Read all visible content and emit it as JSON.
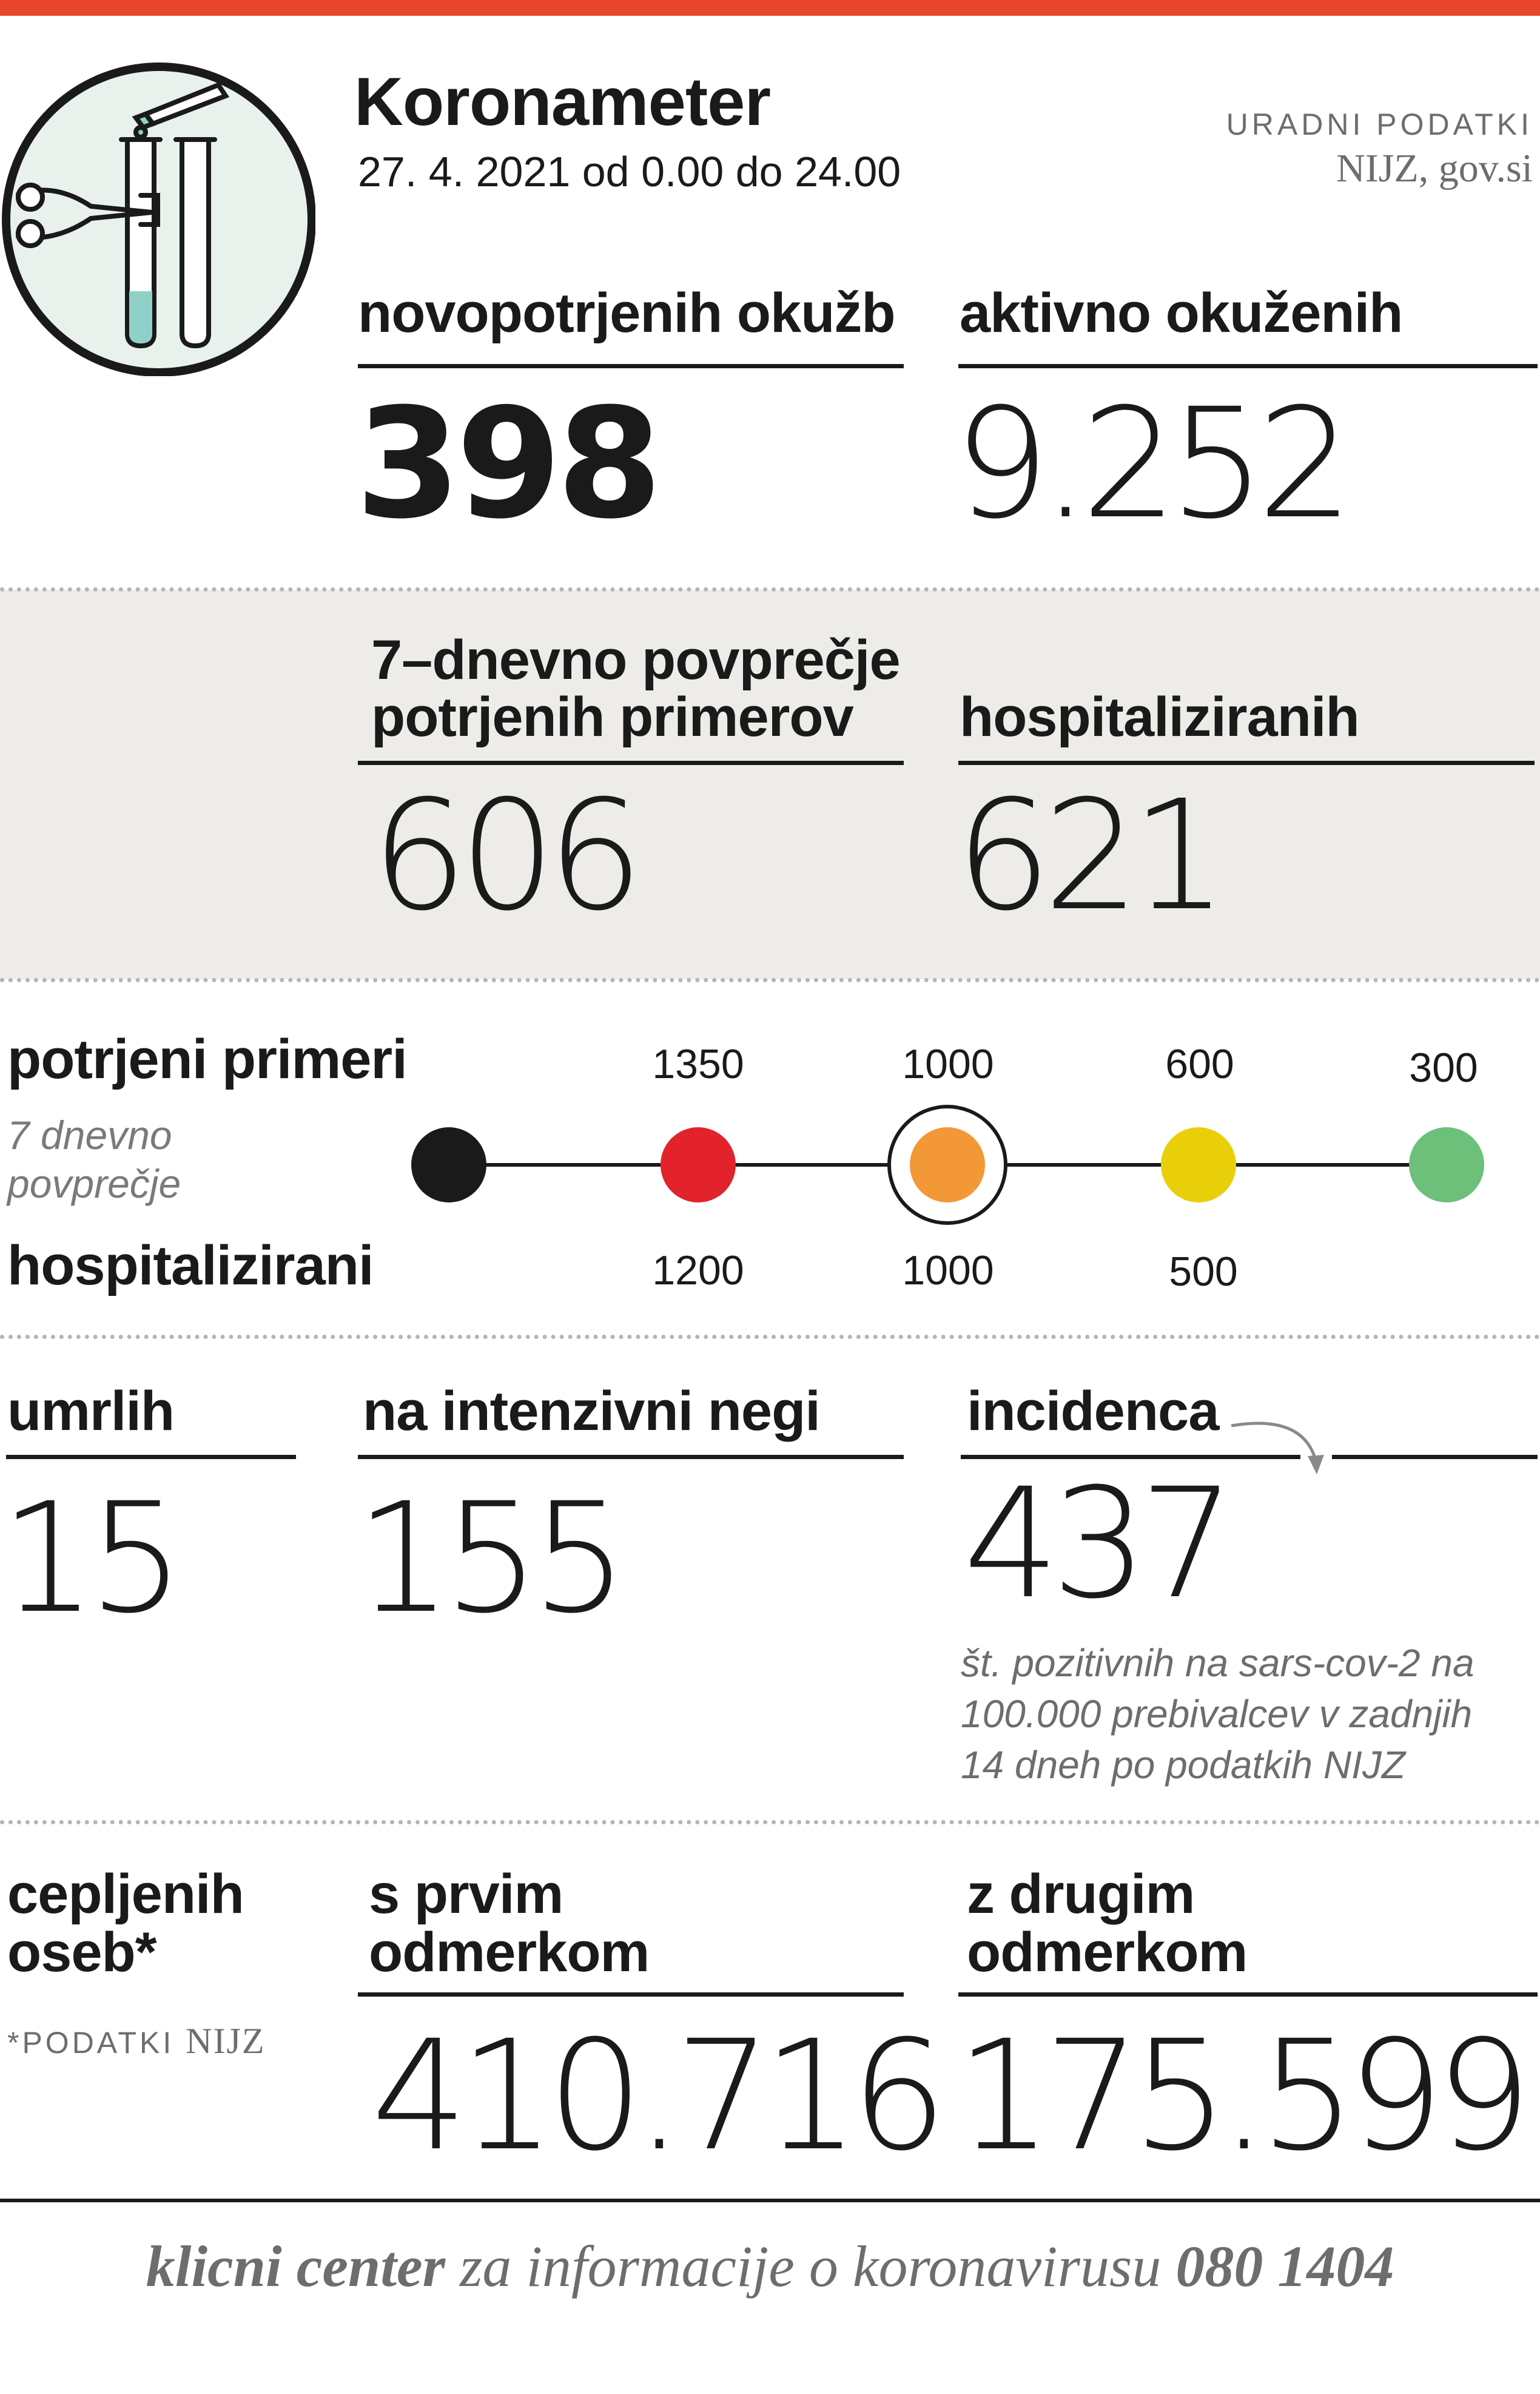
{
  "header": {
    "title": "Koronameter",
    "date": "27. 4. 2021 od 0.00 do 24.00",
    "source_top": "URADNI PODATKI",
    "source_bottom": "NIJZ, gov.si",
    "accent_color": "#e8452c"
  },
  "stats_top": {
    "new_cases_label": "novopotrjenih okužb",
    "new_cases_value": "398",
    "active_label": "aktivno okuženih",
    "active_value": "9.252"
  },
  "stats_grey": {
    "avg_label_line1": "7–dnevno povprečje",
    "avg_label_line2": "potrjenih primerov",
    "avg_value": "606",
    "hosp_label": "hospitaliziranih",
    "hosp_value": "621"
  },
  "scale": {
    "label_cases": "potrjeni primeri",
    "sublabel_line1": "7 dnevno",
    "sublabel_line2": "povprečje",
    "label_hosp": "hospitalizirani",
    "cases_ticks": [
      "1350",
      "1000",
      "600",
      "300"
    ],
    "hosp_ticks": [
      "1200",
      "1000",
      "500"
    ],
    "dot_colors": [
      "#1a1a1a",
      "#e3232b",
      "#f29837",
      "#e9cf0a",
      "#6cc07a"
    ],
    "current_level_index": 2
  },
  "stats_bottom": {
    "deaths_label": "umrlih",
    "deaths_value": "15",
    "icu_label": "na intenzivni negi",
    "icu_value": "155",
    "incidence_label": "incidenca",
    "incidence_value": "437",
    "incidence_desc_line1": "št. pozitivnih na sars-cov-2 na",
    "incidence_desc_line2": "100.000 prebivalcev v zadnjih",
    "incidence_desc_line3": "14 dneh po podatkih NIJZ"
  },
  "vaccination": {
    "label_line1": "cepljenih",
    "label_line2": "oseb*",
    "footnote_prefix": "*PODATKI",
    "footnote_source": "NIJZ",
    "first_label_line1": "s prvim",
    "first_label_line2": "odmerkom",
    "first_value": "410.716",
    "second_label_line1": "z drugim",
    "second_label_line2": "odmerkom",
    "second_value": "175.599"
  },
  "footer": {
    "part_bold": "klicni center",
    "part_regular": "za informacije o koronavirusu",
    "phone": "080 1404"
  }
}
